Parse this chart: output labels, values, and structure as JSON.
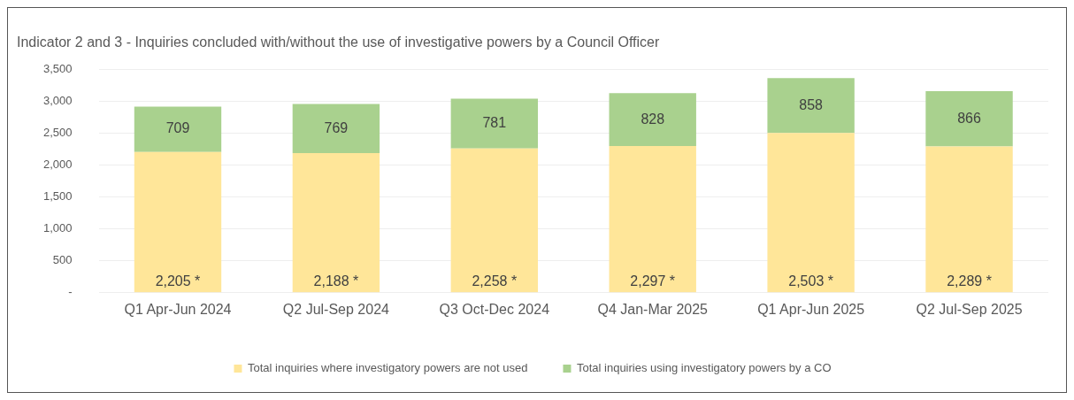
{
  "chart_data": {
    "type": "bar",
    "title": "Indicator 2 and 3 - Inquiries concluded with/without the use of investigative powers by a Council Officer",
    "categories": [
      "Q1 Apr-Jun 2024",
      "Q2 Jul-Sep 2024",
      "Q3 Oct-Dec 2024",
      "Q4 Jan-Mar 2025",
      "Q1 Apr-Jun 2025",
      "Q2 Jul-Sep 2025"
    ],
    "stacked": true,
    "series": [
      {
        "name": "Total inquiries where investigatory powers are not used",
        "color": "#ffe699",
        "values": [
          2205,
          2188,
          2258,
          2297,
          2503,
          2289
        ],
        "value_labels": [
          "2,205 *",
          "2,188 *",
          "2,258 *",
          "2,297 *",
          "2,503 *",
          "2,289 *"
        ]
      },
      {
        "name": "Total inquiries using investigatory powers by a CO",
        "color": "#a9d18e",
        "values": [
          709,
          769,
          781,
          828,
          858,
          866
        ],
        "value_labels": [
          "709",
          "769",
          "781",
          "828",
          "858",
          "866"
        ]
      }
    ],
    "ylim": [
      0,
      3500
    ],
    "yticks": [
      {
        "value": 0,
        "label": "-"
      },
      {
        "value": 500,
        "label": "500"
      },
      {
        "value": 1000,
        "label": "1,000"
      },
      {
        "value": 1500,
        "label": "1,500"
      },
      {
        "value": 2000,
        "label": "2,000"
      },
      {
        "value": 2500,
        "label": "2,500"
      },
      {
        "value": 3000,
        "label": "3,000"
      },
      {
        "value": 3500,
        "label": "3,500"
      }
    ],
    "grid": "y",
    "legend": "bottom"
  }
}
